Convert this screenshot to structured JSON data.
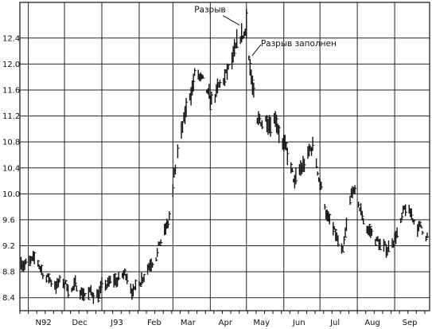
{
  "chart_data": {
    "type": "bar",
    "subtype": "daily OHLC price bars",
    "title": "",
    "xlabel": "",
    "ylabel": "",
    "ylim": [
      8.2,
      12.95
    ],
    "y_ticks": [
      8.4,
      8.8,
      9.2,
      9.6,
      10.0,
      10.4,
      10.8,
      11.2,
      11.6,
      12.0,
      12.4
    ],
    "y_tick_labels": [
      "8.4",
      "8.8",
      "9.2",
      "9.6",
      "10.0",
      "10.4",
      "10.8",
      "11.2",
      "11.6",
      "12.0",
      "12.4"
    ],
    "x_range": [
      "1992-10-25",
      "1993-09-30"
    ],
    "x_ticks": [
      {
        "date": "1992-11-01",
        "label": "N92"
      },
      {
        "date": "1992-12-01",
        "label": "Dec"
      },
      {
        "date": "1993-01-01",
        "label": "J93"
      },
      {
        "date": "1993-02-01",
        "label": "Feb"
      },
      {
        "date": "1993-03-01",
        "label": "Mar"
      },
      {
        "date": "1993-04-01",
        "label": "Apr"
      },
      {
        "date": "1993-05-01",
        "label": "May"
      },
      {
        "date": "1993-06-01",
        "label": "Jun"
      },
      {
        "date": "1993-07-01",
        "label": "Jul"
      },
      {
        "date": "1993-08-01",
        "label": "Aug"
      },
      {
        "date": "1993-09-01",
        "label": "Sep"
      }
    ],
    "grid": true,
    "legend": "none",
    "price_path": [
      {
        "date": "1992-10-26",
        "price": 9.0
      },
      {
        "date": "1992-11-10",
        "price": 8.85
      },
      {
        "date": "1992-11-20",
        "price": 8.65
      },
      {
        "date": "1992-12-10",
        "price": 8.55
      },
      {
        "date": "1992-12-24",
        "price": 8.45
      },
      {
        "date": "1993-01-10",
        "price": 8.6
      },
      {
        "date": "1993-01-22",
        "price": 8.75
      },
      {
        "date": "1993-01-28",
        "price": 8.5
      },
      {
        "date": "1993-02-10",
        "price": 9.0
      },
      {
        "date": "1993-02-25",
        "price": 9.5
      },
      {
        "date": "1993-03-05",
        "price": 10.6
      },
      {
        "date": "1993-03-20",
        "price": 11.9
      },
      {
        "date": "1993-04-01",
        "price": 11.3
      },
      {
        "date": "1993-04-18",
        "price": 11.9
      },
      {
        "date": "1993-05-01",
        "price": 12.5
      },
      {
        "date": "1993-05-10",
        "price": 11.0
      },
      {
        "date": "1993-05-25",
        "price": 11.3
      },
      {
        "date": "1993-06-10",
        "price": 10.1
      },
      {
        "date": "1993-06-25",
        "price": 10.7
      },
      {
        "date": "1993-07-08",
        "price": 9.6
      },
      {
        "date": "1993-07-20",
        "price": 9.0
      },
      {
        "date": "1993-07-28",
        "price": 10.0
      },
      {
        "date": "1993-08-08",
        "price": 9.5
      },
      {
        "date": "1993-08-25",
        "price": 9.1
      },
      {
        "date": "1993-09-10",
        "price": 9.7
      },
      {
        "date": "1993-09-26",
        "price": 9.4
      }
    ],
    "gap_bars": [
      {
        "date": "1993-03-01",
        "high": 10.15,
        "low": 9.95
      },
      {
        "date": "1993-03-02",
        "high": 10.4,
        "low": 10.25
      },
      {
        "date": "1993-03-03",
        "high": 10.45,
        "low": 10.3
      }
    ],
    "peak_bar": {
      "date": "1993-05-01",
      "high": 12.85,
      "low": 12.4
    },
    "annotations": [
      {
        "text": "Разрыв",
        "date": "1993-04-26",
        "price": 12.55
      },
      {
        "text": "Разрыв заполнен",
        "date": "1993-05-05",
        "price": 12.25
      }
    ]
  }
}
